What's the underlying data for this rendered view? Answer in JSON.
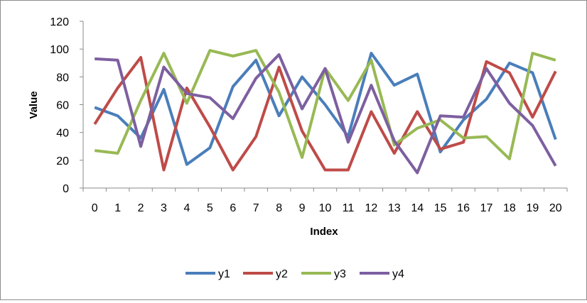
{
  "chart_data": {
    "type": "line",
    "title": "",
    "xlabel": "Index",
    "ylabel": "Value",
    "x": [
      0,
      1,
      2,
      3,
      4,
      5,
      6,
      7,
      8,
      9,
      10,
      11,
      12,
      13,
      14,
      15,
      16,
      17,
      18,
      19,
      20
    ],
    "xlim": [
      0,
      20
    ],
    "ylim": [
      0,
      120
    ],
    "yticks": [
      0,
      20,
      40,
      60,
      80,
      100,
      120
    ],
    "grid": false,
    "legend_position": "bottom",
    "series": [
      {
        "name": "y1",
        "color": "#4a7ebb",
        "values": [
          58,
          52,
          36,
          71,
          17,
          29,
          73,
          92,
          52,
          80,
          60,
          37,
          97,
          74,
          82,
          26,
          49,
          64,
          90,
          83,
          35
        ]
      },
      {
        "name": "y2",
        "color": "#be4b48",
        "values": [
          46,
          72,
          94,
          13,
          72,
          44,
          13,
          37,
          87,
          41,
          13,
          13,
          55,
          25,
          55,
          28,
          33,
          91,
          83,
          51,
          84
        ]
      },
      {
        "name": "y3",
        "color": "#98b954",
        "values": [
          27,
          25,
          63,
          97,
          61,
          99,
          95,
          99,
          69,
          22,
          86,
          63,
          92,
          31,
          43,
          49,
          36,
          37,
          21,
          97,
          92
        ]
      },
      {
        "name": "y4",
        "color": "#7d5fa0",
        "values": [
          93,
          92,
          30,
          87,
          68,
          65,
          50,
          79,
          96,
          57,
          86,
          33,
          74,
          34,
          11,
          52,
          51,
          86,
          61,
          45,
          16
        ]
      }
    ]
  }
}
